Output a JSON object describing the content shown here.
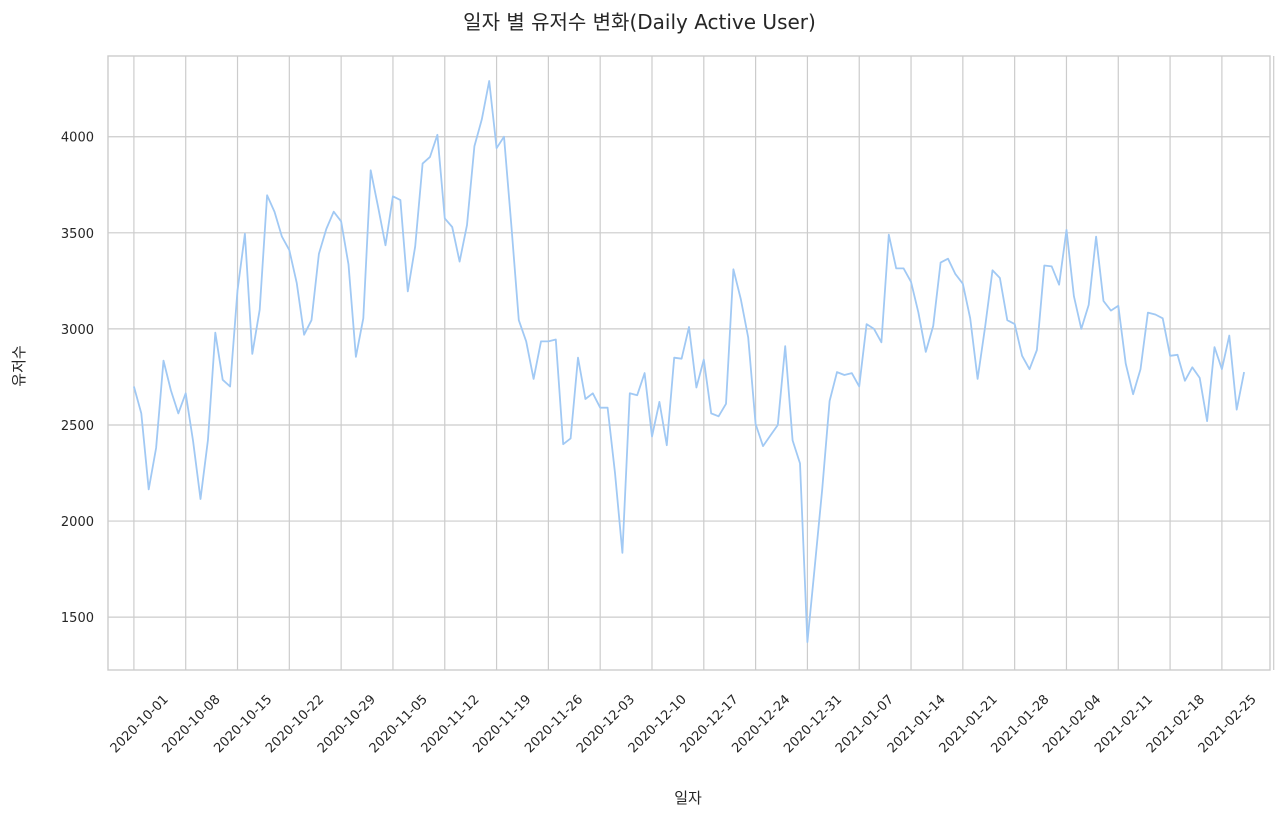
{
  "chart_data": {
    "type": "line",
    "title": "일자 별 유저수 변화(Daily Active User)",
    "xlabel": "일자",
    "ylabel": "유저수",
    "x_start": "2020-10-01",
    "x_tick_labels": [
      "2020-10-01",
      "2020-10-08",
      "2020-10-15",
      "2020-10-22",
      "2020-10-29",
      "2020-11-05",
      "2020-11-12",
      "2020-11-19",
      "2020-11-26",
      "2020-12-03",
      "2020-12-10",
      "2020-12-17",
      "2020-12-24",
      "2020-12-31",
      "2021-01-07",
      "2021-01-14",
      "2021-01-21",
      "2021-01-28",
      "2021-02-04",
      "2021-02-11",
      "2021-02-18",
      "2021-02-25"
    ],
    "y_ticks": [
      1500,
      2000,
      2500,
      3000,
      3500,
      4000
    ],
    "ylim": [
      1225,
      4420
    ],
    "xlim_days": [
      -3.5,
      153.5
    ],
    "grid": true,
    "line_color": "#a1c9f4",
    "series": [
      {
        "values": [
          2700,
          2560,
          2165,
          2380,
          2835,
          2680,
          2560,
          2665,
          2415,
          2115,
          2420,
          2980,
          2735,
          2700,
          3200,
          3495,
          2870,
          3100,
          3695,
          3610,
          3480,
          3410,
          3240,
          2970,
          3045,
          3390,
          3520,
          3610,
          3560,
          3335,
          2855,
          3055,
          3825,
          3635,
          3435,
          3690,
          3670,
          3195,
          3430,
          3860,
          3895,
          4010,
          3575,
          3530,
          3350,
          3540,
          3950,
          4090,
          4290,
          3940,
          4000,
          3535,
          3045,
          2935,
          2740,
          2935,
          2935,
          2945,
          2400,
          2430,
          2850,
          2635,
          2665,
          2590,
          2590,
          2250,
          1835,
          2665,
          2655,
          2770,
          2440,
          2620,
          2395,
          2850,
          2845,
          3010,
          2695,
          2840,
          2560,
          2545,
          2610,
          3310,
          3155,
          2955,
          2505,
          2390,
          2445,
          2500,
          2910,
          2420,
          2300,
          1370,
          1765,
          2165,
          2625,
          2775,
          2760,
          2770,
          2700,
          3025,
          3000,
          2930,
          3490,
          3315,
          3315,
          3245,
          3085,
          2880,
          3015,
          3345,
          3365,
          3285,
          3235,
          3055,
          2740,
          3010,
          3305,
          3265,
          3045,
          3025,
          2860,
          2790,
          2890,
          3330,
          3325,
          3230,
          3515,
          3170,
          3000,
          3125,
          3480,
          3145,
          3095,
          3120,
          2820,
          2660,
          2790,
          3085,
          3075,
          3055,
          2860,
          2865,
          2730,
          2800,
          2745,
          2520,
          2905,
          2790,
          2965,
          2580,
          2775
        ]
      }
    ]
  }
}
